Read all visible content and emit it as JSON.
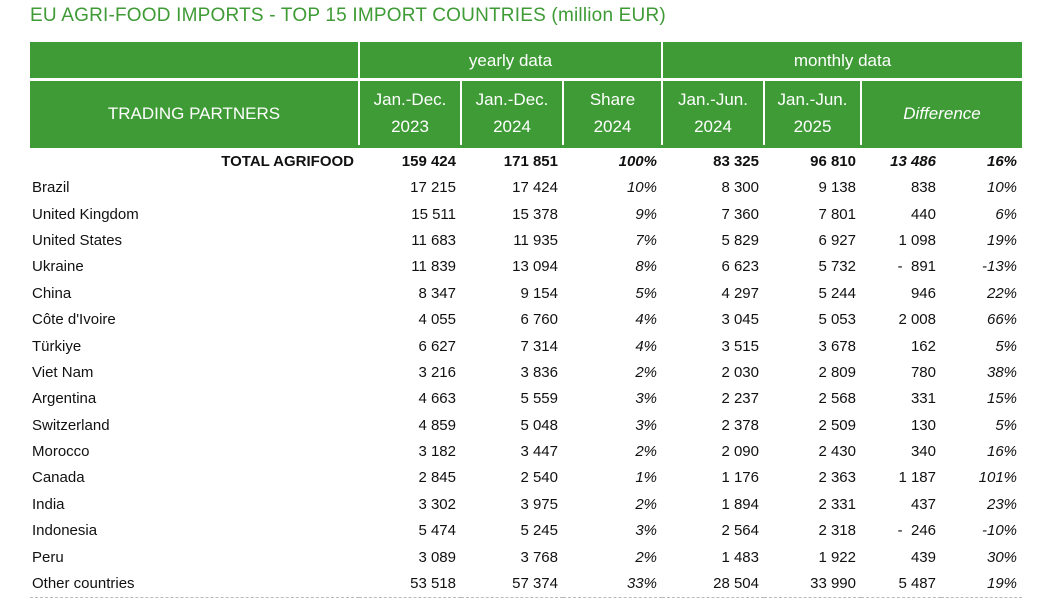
{
  "title": "EU AGRI-FOOD IMPORTS - TOP 15 IMPORT COUNTRIES (million EUR)",
  "header": {
    "group_yearly": "yearly data",
    "group_monthly": "monthly data",
    "trading_partners": "TRADING PARTNERS",
    "columns": [
      {
        "line1": "Jan.-Dec.",
        "line2": "2023"
      },
      {
        "line1": "Jan.-Dec.",
        "line2": "2024"
      },
      {
        "line1": "Share",
        "line2": "2024"
      },
      {
        "line1": "Jan.-Jun.",
        "line2": "2024"
      },
      {
        "line1": "Jan.-Jun.",
        "line2": "2025"
      }
    ],
    "difference": "Difference"
  },
  "total": {
    "label": "TOTAL AGRIFOOD",
    "y2023": "159 424",
    "y2024": "171 851",
    "share": "100%",
    "m2024": "83 325",
    "m2025": "96 810",
    "diff_abs": "13 486",
    "diff_pct": "16%"
  },
  "rows": [
    {
      "name": "Brazil",
      "y2023": "17 215",
      "y2024": "17 424",
      "share": "10%",
      "m2024": "8 300",
      "m2025": "9 138",
      "diff_abs": "838",
      "diff_pct": "10%"
    },
    {
      "name": "United Kingdom",
      "y2023": "15 511",
      "y2024": "15 378",
      "share": "9%",
      "m2024": "7 360",
      "m2025": "7 801",
      "diff_abs": "440",
      "diff_pct": "6%"
    },
    {
      "name": "United States",
      "y2023": "11 683",
      "y2024": "11 935",
      "share": "7%",
      "m2024": "5 829",
      "m2025": "6 927",
      "diff_abs": "1 098",
      "diff_pct": "19%"
    },
    {
      "name": "Ukraine",
      "y2023": "11 839",
      "y2024": "13 094",
      "share": "8%",
      "m2024": "6 623",
      "m2025": "5 732",
      "diff_abs": "-  891",
      "diff_pct": "-13%"
    },
    {
      "name": "China",
      "y2023": "8 347",
      "y2024": "9 154",
      "share": "5%",
      "m2024": "4 297",
      "m2025": "5 244",
      "diff_abs": "946",
      "diff_pct": "22%"
    },
    {
      "name": "Côte d'Ivoire",
      "y2023": "4 055",
      "y2024": "6 760",
      "share": "4%",
      "m2024": "3 045",
      "m2025": "5 053",
      "diff_abs": "2 008",
      "diff_pct": "66%"
    },
    {
      "name": "Türkiye",
      "y2023": "6 627",
      "y2024": "7 314",
      "share": "4%",
      "m2024": "3 515",
      "m2025": "3 678",
      "diff_abs": "162",
      "diff_pct": "5%"
    },
    {
      "name": "Viet Nam",
      "y2023": "3 216",
      "y2024": "3 836",
      "share": "2%",
      "m2024": "2 030",
      "m2025": "2 809",
      "diff_abs": "780",
      "diff_pct": "38%"
    },
    {
      "name": "Argentina",
      "y2023": "4 663",
      "y2024": "5 559",
      "share": "3%",
      "m2024": "2 237",
      "m2025": "2 568",
      "diff_abs": "331",
      "diff_pct": "15%"
    },
    {
      "name": "Switzerland",
      "y2023": "4 859",
      "y2024": "5 048",
      "share": "3%",
      "m2024": "2 378",
      "m2025": "2 509",
      "diff_abs": "130",
      "diff_pct": "5%"
    },
    {
      "name": "Morocco",
      "y2023": "3 182",
      "y2024": "3 447",
      "share": "2%",
      "m2024": "2 090",
      "m2025": "2 430",
      "diff_abs": "340",
      "diff_pct": "16%"
    },
    {
      "name": "Canada",
      "y2023": "2 845",
      "y2024": "2 540",
      "share": "1%",
      "m2024": "1 176",
      "m2025": "2 363",
      "diff_abs": "1 187",
      "diff_pct": "101%"
    },
    {
      "name": "India",
      "y2023": "3 302",
      "y2024": "3 975",
      "share": "2%",
      "m2024": "1 894",
      "m2025": "2 331",
      "diff_abs": "437",
      "diff_pct": "23%"
    },
    {
      "name": "Indonesia",
      "y2023": "5 474",
      "y2024": "5 245",
      "share": "3%",
      "m2024": "2 564",
      "m2025": "2 318",
      "diff_abs": "-  246",
      "diff_pct": "-10%"
    },
    {
      "name": "Peru",
      "y2023": "3 089",
      "y2024": "3 768",
      "share": "2%",
      "m2024": "1 483",
      "m2025": "1 922",
      "diff_abs": "439",
      "diff_pct": "30%"
    },
    {
      "name": "Other countries",
      "y2023": "53 518",
      "y2024": "57 374",
      "share": "33%",
      "m2024": "28 504",
      "m2025": "33 990",
      "diff_abs": "5 487",
      "diff_pct": "19%"
    }
  ],
  "colors": {
    "accent_green": "#3e9b35",
    "header_text": "#ffffff"
  }
}
